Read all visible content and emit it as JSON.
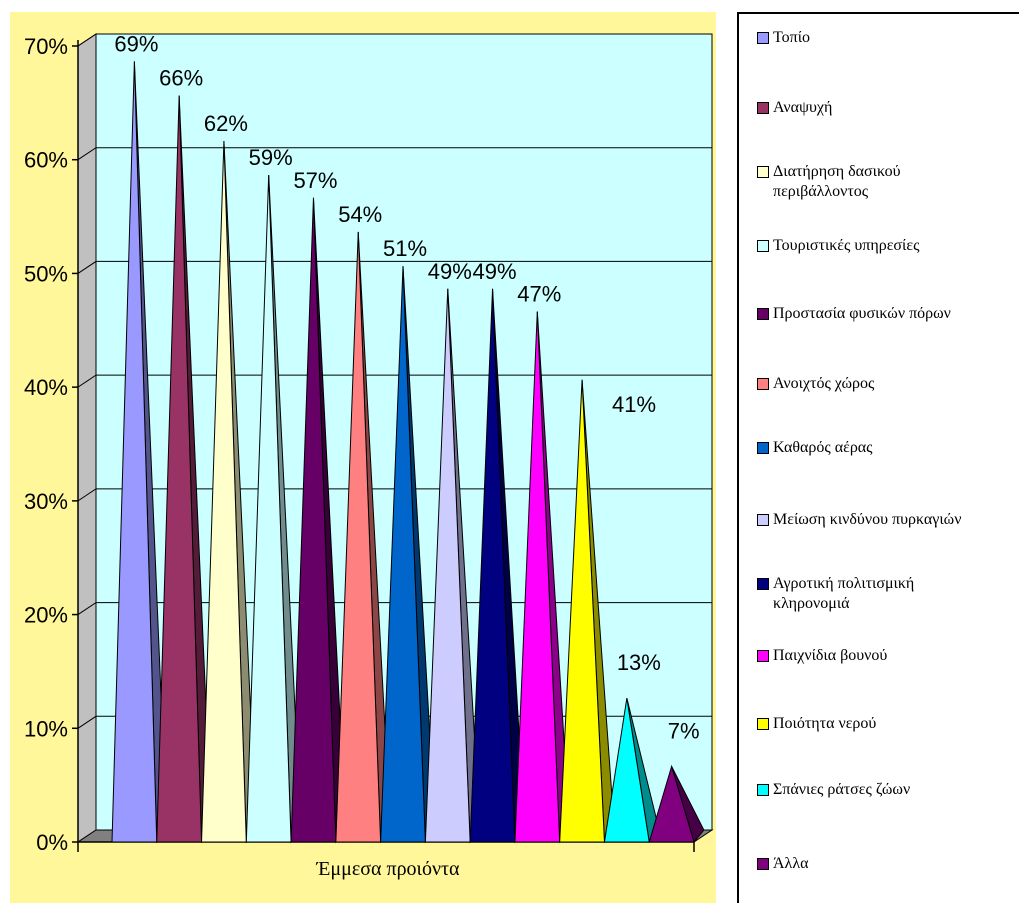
{
  "colors": {
    "page_background": "#fff799",
    "plot_background": "#ccffff",
    "floor": "#808080"
  },
  "chart_data": {
    "type": "bar",
    "style": "3d-cone",
    "title": "",
    "xlabel": "Έμμεσα προιόντα",
    "ylabel": "",
    "ylim": [
      0,
      70
    ],
    "yticks": [
      "0%",
      "10%",
      "20%",
      "30%",
      "40%",
      "50%",
      "60%",
      "70%"
    ],
    "grid": true,
    "legend_position": "right",
    "series": [
      {
        "name": "Τοπίο",
        "value": 69,
        "label": "69%",
        "color": "#9999ff"
      },
      {
        "name": "Αναψυχή",
        "value": 66,
        "label": "66%",
        "color": "#993366"
      },
      {
        "name": "Διατήρηση δασικού\nπεριβάλλοντος",
        "value": 62,
        "label": "62%",
        "color": "#ffffcc"
      },
      {
        "name": "Τουριστικές υπηρεσίες",
        "value": 59,
        "label": "59%",
        "color": "#ccffff"
      },
      {
        "name": "Προστασία φυσικών πόρων",
        "value": 57,
        "label": "57%",
        "color": "#660066"
      },
      {
        "name": "Ανοιχτός χώρος",
        "value": 54,
        "label": "54%",
        "color": "#ff8080"
      },
      {
        "name": "Καθαρός αέρας",
        "value": 51,
        "label": "51%",
        "color": "#0066cc"
      },
      {
        "name": "Μείωση κινδύνου πυρκαγιών",
        "value": 49,
        "label": "49%",
        "color": "#ccccff"
      },
      {
        "name": "Αγροτική πολιτισμική\nκληρονομιά",
        "value": 49,
        "label": "49%",
        "color": "#000080"
      },
      {
        "name": "Παιχνίδια βουνού",
        "value": 47,
        "label": "47%",
        "color": "#ff00ff"
      },
      {
        "name": "Ποιότητα νερού",
        "value": 41,
        "label": "41%",
        "color": "#ffff00"
      },
      {
        "name": "Σπάνιες ράτσες ζώων",
        "value": 13,
        "label": "13%",
        "color": "#00ffff"
      },
      {
        "name": "Άλλα",
        "value": 7,
        "label": "7%",
        "color": "#800080"
      }
    ]
  }
}
